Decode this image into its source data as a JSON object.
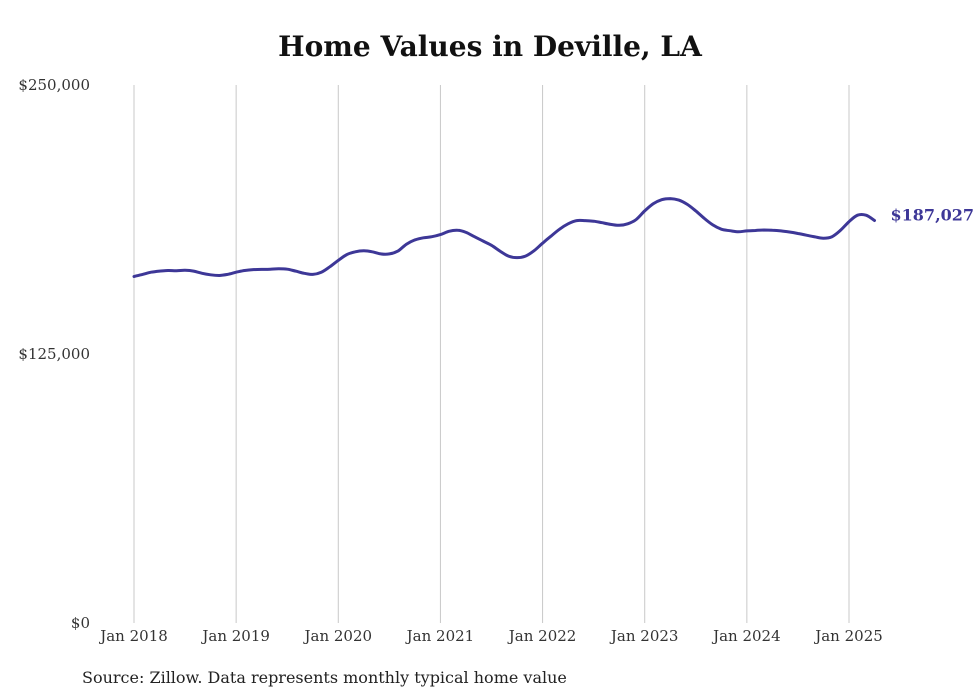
{
  "title": "Home Values in Deville, LA",
  "source": "Source: Zillow. Data represents monthly typical home value",
  "colors": {
    "line": "#3d3797",
    "grid": "#c8c8c8",
    "text": "#333333"
  },
  "chart_data": {
    "type": "line",
    "title": "Home Values in Deville, LA",
    "xlabel": "",
    "ylabel": "",
    "x_range": [
      "2018-01",
      "2025-04"
    ],
    "ylim": [
      0,
      250000
    ],
    "y_ticks": [
      {
        "value": 0,
        "label": "$0"
      },
      {
        "value": 125000,
        "label": "$125,000"
      },
      {
        "value": 250000,
        "label": "$250,000"
      }
    ],
    "x_ticks": [
      {
        "value": "2018-01",
        "label": "Jan 2018"
      },
      {
        "value": "2019-01",
        "label": "Jan 2019"
      },
      {
        "value": "2020-01",
        "label": "Jan 2020"
      },
      {
        "value": "2021-01",
        "label": "Jan 2021"
      },
      {
        "value": "2022-01",
        "label": "Jan 2022"
      },
      {
        "value": "2023-01",
        "label": "Jan 2023"
      },
      {
        "value": "2024-01",
        "label": "Jan 2024"
      },
      {
        "value": "2025-01",
        "label": "Jan 2025"
      }
    ],
    "grid": {
      "vertical": true,
      "horizontal": false
    },
    "end_label": "$187,027",
    "series": [
      {
        "color": "#3d3797",
        "points": [
          [
            "2018-01",
            161000
          ],
          [
            "2018-02",
            162000
          ],
          [
            "2018-03",
            163000
          ],
          [
            "2018-04",
            163500
          ],
          [
            "2018-05",
            163800
          ],
          [
            "2018-06",
            163700
          ],
          [
            "2018-07",
            163900
          ],
          [
            "2018-08",
            163500
          ],
          [
            "2018-09",
            162500
          ],
          [
            "2018-10",
            161800
          ],
          [
            "2018-11",
            161500
          ],
          [
            "2018-12",
            162000
          ],
          [
            "2019-01",
            163000
          ],
          [
            "2019-02",
            163800
          ],
          [
            "2019-03",
            164200
          ],
          [
            "2019-04",
            164300
          ],
          [
            "2019-05",
            164400
          ],
          [
            "2019-06",
            164600
          ],
          [
            "2019-07",
            164400
          ],
          [
            "2019-08",
            163500
          ],
          [
            "2019-09",
            162500
          ],
          [
            "2019-10",
            162000
          ],
          [
            "2019-11",
            163000
          ],
          [
            "2019-12",
            165500
          ],
          [
            "2020-01",
            168500
          ],
          [
            "2020-02",
            171200
          ],
          [
            "2020-03",
            172500
          ],
          [
            "2020-04",
            173000
          ],
          [
            "2020-05",
            172500
          ],
          [
            "2020-06",
            171500
          ],
          [
            "2020-07",
            171500
          ],
          [
            "2020-08",
            172800
          ],
          [
            "2020-09",
            176000
          ],
          [
            "2020-10",
            178000
          ],
          [
            "2020-11",
            179000
          ],
          [
            "2020-12",
            179500
          ],
          [
            "2021-01",
            180500
          ],
          [
            "2021-02",
            182000
          ],
          [
            "2021-03",
            182500
          ],
          [
            "2021-04",
            181500
          ],
          [
            "2021-05",
            179500
          ],
          [
            "2021-06",
            177500
          ],
          [
            "2021-07",
            175500
          ],
          [
            "2021-08",
            172800
          ],
          [
            "2021-09",
            170500
          ],
          [
            "2021-10",
            169800
          ],
          [
            "2021-11",
            170500
          ],
          [
            "2021-12",
            173000
          ],
          [
            "2022-01",
            176500
          ],
          [
            "2022-02",
            179800
          ],
          [
            "2022-03",
            183000
          ],
          [
            "2022-04",
            185500
          ],
          [
            "2022-05",
            187000
          ],
          [
            "2022-06",
            187000
          ],
          [
            "2022-07",
            186700
          ],
          [
            "2022-08",
            186000
          ],
          [
            "2022-09",
            185200
          ],
          [
            "2022-10",
            184800
          ],
          [
            "2022-11",
            185500
          ],
          [
            "2022-12",
            187500
          ],
          [
            "2023-01",
            191500
          ],
          [
            "2023-02",
            194800
          ],
          [
            "2023-03",
            196700
          ],
          [
            "2023-04",
            197200
          ],
          [
            "2023-05",
            196500
          ],
          [
            "2023-06",
            194500
          ],
          [
            "2023-07",
            191500
          ],
          [
            "2023-08",
            188000
          ],
          [
            "2023-09",
            185000
          ],
          [
            "2023-10",
            183000
          ],
          [
            "2023-11",
            182300
          ],
          [
            "2023-12",
            181800
          ],
          [
            "2024-01",
            182200
          ],
          [
            "2024-02",
            182400
          ],
          [
            "2024-03",
            182600
          ],
          [
            "2024-04",
            182500
          ],
          [
            "2024-05",
            182200
          ],
          [
            "2024-06",
            181700
          ],
          [
            "2024-07",
            181000
          ],
          [
            "2024-08",
            180200
          ],
          [
            "2024-09",
            179400
          ],
          [
            "2024-10",
            178800
          ],
          [
            "2024-11",
            179500
          ],
          [
            "2024-12",
            182500
          ],
          [
            "2025-01",
            186500
          ],
          [
            "2025-02",
            189500
          ],
          [
            "2025-03",
            189500
          ],
          [
            "2025-04",
            187027
          ]
        ]
      }
    ]
  }
}
